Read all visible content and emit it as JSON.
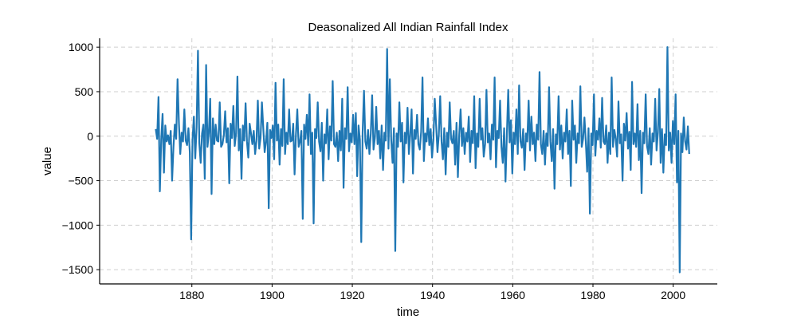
{
  "chart_data": {
    "type": "line",
    "title": "Deasonalized All Indian Rainfall Index",
    "xlabel": "time",
    "ylabel": "value",
    "xlim": [
      1857,
      2011
    ],
    "ylim": [
      -1660,
      1100
    ],
    "x_ticks": [
      1880,
      1900,
      1920,
      1940,
      1960,
      1980,
      2000
    ],
    "y_ticks": [
      1000,
      500,
      0,
      -500,
      -1000,
      -1500
    ],
    "x_tick_labels": [
      "1880",
      "1900",
      "1920",
      "1940",
      "1960",
      "1980",
      "2000"
    ],
    "y_tick_labels": [
      "1000",
      "500",
      "0",
      "−500",
      "−1000",
      "−1500"
    ],
    "grid": true,
    "series": [
      {
        "color": "#1f77b4",
        "start_year": 1871,
        "end_year": 2004,
        "step": "monthly",
        "values": [
          80,
          -30,
          440,
          -620,
          -40,
          250,
          -410,
          120,
          -60,
          10,
          -90,
          60,
          -500,
          -120,
          130,
          -30,
          640,
          150,
          -200,
          40,
          -60,
          300,
          -50,
          -100,
          90,
          -180,
          -1160,
          -40,
          220,
          -250,
          100,
          960,
          -80,
          -300,
          30,
          130,
          -480,
          800,
          -120,
          40,
          420,
          -650,
          200,
          -90,
          130,
          -50,
          -60,
          380,
          -120,
          -90,
          10,
          280,
          -70,
          90,
          -530,
          140,
          -20,
          340,
          -110,
          30,
          670,
          -160,
          80,
          -480,
          120,
          -50,
          370,
          -60,
          -240,
          140,
          30,
          -90,
          60,
          -200,
          -50,
          400,
          -140,
          -20,
          380,
          90,
          -180,
          -60,
          150,
          -810,
          70,
          -20,
          120,
          -260,
          600,
          -50,
          130,
          -320,
          80,
          -110,
          640,
          -200,
          40,
          -90,
          300,
          -60,
          -50,
          140,
          -430,
          20,
          300,
          -120,
          -60,
          60,
          -930,
          130,
          -30,
          240,
          -100,
          470,
          -200,
          40,
          -980,
          80,
          -20,
          380,
          -60,
          -170,
          150,
          -500,
          20,
          -80,
          300,
          -260,
          110,
          -50,
          620,
          -90,
          -120,
          40,
          -280,
          60,
          -160,
          420,
          -580,
          90,
          -30,
          550,
          -170,
          30,
          -70,
          240,
          -90,
          260,
          -450,
          120,
          -40,
          -1190,
          40,
          510,
          -60,
          -140,
          70,
          -200,
          30,
          460,
          -150,
          -20,
          330,
          -90,
          60,
          -250,
          120,
          -380,
          40,
          -50,
          980,
          -140,
          640,
          -40,
          -300,
          90,
          -1290,
          30,
          -120,
          380,
          -60,
          150,
          -520,
          40,
          -80,
          320,
          -200,
          20,
          300,
          -420,
          70,
          -30,
          240,
          -90,
          -150,
          50,
          660,
          -280,
          30,
          -60,
          200,
          -100,
          80,
          -240,
          -40,
          420,
          130,
          -180,
          20,
          450,
          -60,
          -260,
          90,
          -430,
          40,
          -120,
          380,
          -30,
          -80,
          60,
          -320,
          150,
          -460,
          20,
          300,
          -110,
          90,
          -200,
          40,
          -60,
          220,
          -290,
          60,
          -80,
          450,
          -360,
          30,
          -120,
          420,
          -40,
          90,
          -230,
          -90,
          520,
          -70,
          30,
          -260,
          130,
          -40,
          660,
          -350,
          60,
          -20,
          400,
          -120,
          -300,
          90,
          -510,
          20,
          520,
          -70,
          180,
          -420,
          40,
          -90,
          300,
          -200,
          570,
          -60,
          -130,
          80,
          -380,
          30,
          -60,
          400,
          -160,
          220,
          -90,
          40,
          -280,
          130,
          -40,
          720,
          -90,
          -200,
          60,
          -320,
          30,
          -110,
          550,
          -60,
          -280,
          80,
          -590,
          20,
          -90,
          450,
          -150,
          120,
          -250,
          40,
          -60,
          300,
          -200,
          60,
          -560,
          400,
          -40,
          120,
          -300,
          30,
          -80,
          560,
          -120,
          -30,
          210,
          -60,
          -400,
          90,
          -870,
          30,
          -100,
          470,
          -220,
          60,
          -40,
          200,
          -130,
          430,
          -60,
          -90,
          120,
          -300,
          40,
          -200,
          660,
          -120,
          70,
          -30,
          -230,
          390,
          -80,
          20,
          -500,
          140,
          -50,
          260,
          -140,
          50,
          -380,
          610,
          -90,
          30,
          -120,
          360,
          -270,
          60,
          -640,
          40,
          -80,
          470,
          -110,
          -200,
          90,
          -320,
          30,
          -60,
          420,
          -160,
          40,
          530,
          -300,
          80,
          -410,
          20,
          -100,
          1000,
          -160,
          40,
          -300,
          170,
          -90,
          470,
          -520,
          60,
          -1530,
          30,
          -180,
          210,
          -60,
          -150,
          110,
          -200
        ]
      }
    ]
  }
}
